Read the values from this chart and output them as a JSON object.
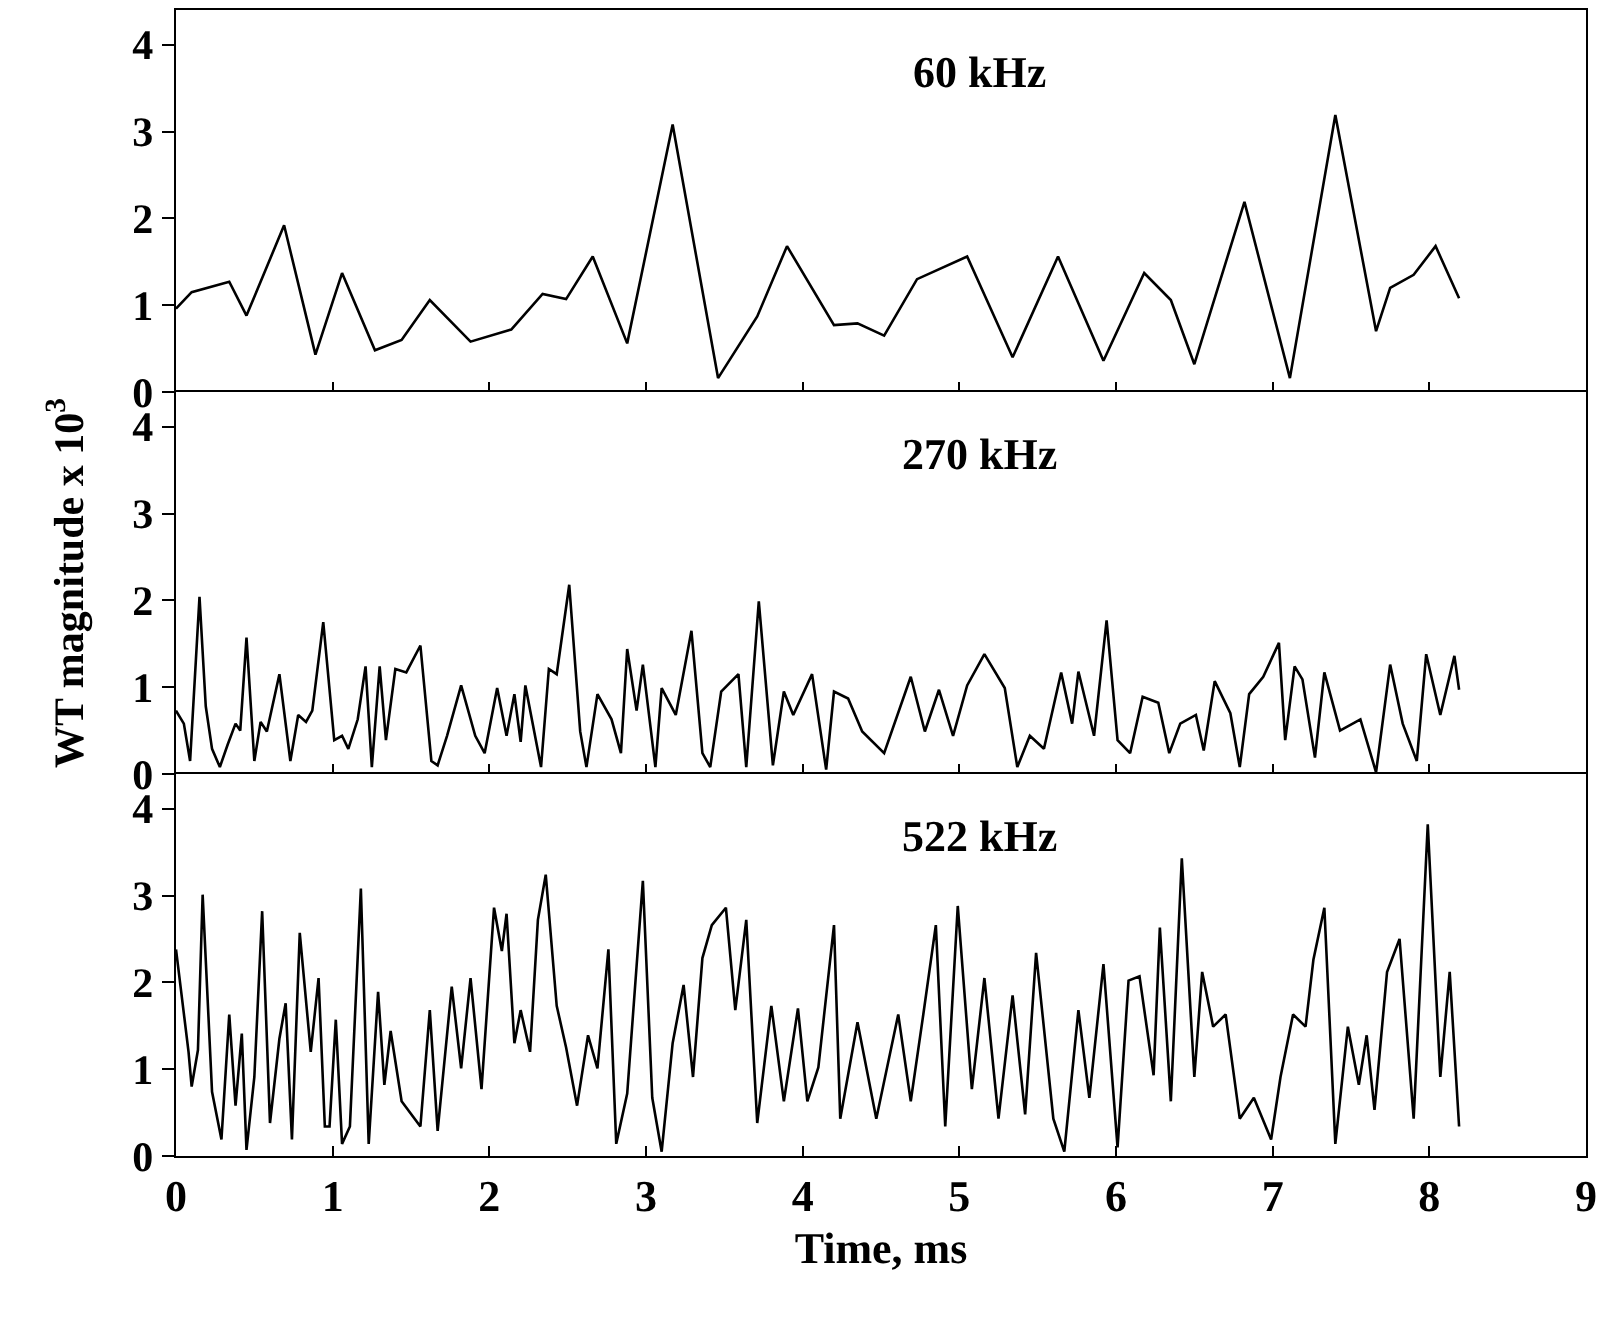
{
  "chart_data": [
    {
      "type": "line",
      "title": "60 kHz",
      "color": "#000000",
      "xlim": [
        0,
        9
      ],
      "xticks": [
        0,
        1,
        2,
        3,
        4,
        5,
        6,
        7,
        8,
        9
      ],
      "ylim": [
        0,
        4.4
      ],
      "yticks": [
        0,
        1,
        2,
        3,
        4
      ],
      "tick_labels": "y",
      "x": [
        0,
        0.1,
        0.34,
        0.45,
        0.69,
        0.89,
        1.06,
        1.27,
        1.44,
        1.62,
        1.88,
        2.14,
        2.34,
        2.49,
        2.66,
        2.88,
        3.17,
        3.46,
        3.71,
        3.9,
        4.2,
        4.35,
        4.52,
        4.73,
        5.05,
        5.34,
        5.63,
        5.92,
        6.18,
        6.35,
        6.5,
        6.82,
        7.11,
        7.4,
        7.66,
        7.75,
        7.9,
        8.04,
        8.19
      ],
      "values": [
        0.96,
        1.15,
        1.27,
        0.88,
        1.92,
        0.43,
        1.37,
        0.48,
        0.6,
        1.06,
        0.58,
        0.72,
        1.13,
        1.07,
        1.56,
        0.56,
        3.08,
        0.16,
        0.87,
        1.68,
        0.77,
        0.79,
        0.65,
        1.3,
        1.56,
        0.4,
        1.56,
        0.36,
        1.37,
        1.06,
        0.32,
        2.19,
        0.16,
        3.19,
        0.7,
        1.2,
        1.35,
        1.68,
        1.08
      ]
    },
    {
      "type": "line",
      "title": "270 kHz",
      "ylabel": "WT magnitude x 10$^{3}$",
      "color": "#000000",
      "xlim": [
        0,
        9
      ],
      "xticks": [
        0,
        1,
        2,
        3,
        4,
        5,
        6,
        7,
        8,
        9
      ],
      "ylim": [
        0,
        4.4
      ],
      "yticks": [
        0,
        1,
        2,
        3,
        4
      ],
      "tick_labels": "y",
      "x": [
        0,
        0.05,
        0.09,
        0.15,
        0.19,
        0.23,
        0.28,
        0.33,
        0.38,
        0.41,
        0.45,
        0.5,
        0.54,
        0.58,
        0.66,
        0.73,
        0.78,
        0.83,
        0.87,
        0.94,
        1.01,
        1.06,
        1.1,
        1.16,
        1.21,
        1.25,
        1.3,
        1.34,
        1.4,
        1.47,
        1.56,
        1.63,
        1.67,
        1.73,
        1.82,
        1.91,
        1.97,
        2.05,
        2.11,
        2.16,
        2.2,
        2.23,
        2.33,
        2.38,
        2.43,
        2.51,
        2.58,
        2.62,
        2.69,
        2.78,
        2.84,
        2.88,
        2.94,
        2.98,
        3.06,
        3.1,
        3.19,
        3.29,
        3.36,
        3.41,
        3.48,
        3.59,
        3.64,
        3.72,
        3.81,
        3.88,
        3.94,
        4.06,
        4.15,
        4.2,
        4.29,
        4.38,
        4.52,
        4.69,
        4.78,
        4.87,
        4.96,
        5.05,
        5.16,
        5.29,
        5.37,
        5.45,
        5.54,
        5.65,
        5.72,
        5.76,
        5.86,
        5.94,
        6.01,
        6.09,
        6.17,
        6.27,
        6.34,
        6.41,
        6.51,
        6.56,
        6.63,
        6.73,
        6.79,
        6.85,
        6.94,
        7.04,
        7.08,
        7.14,
        7.19,
        7.27,
        7.33,
        7.43,
        7.56,
        7.66,
        7.75,
        7.83,
        7.92,
        7.98,
        8.07,
        8.16,
        8.19
      ],
      "values": [
        0.73,
        0.58,
        0.15,
        2.04,
        0.78,
        0.29,
        0.08,
        0.34,
        0.58,
        0.5,
        1.57,
        0.15,
        0.6,
        0.49,
        1.15,
        0.15,
        0.68,
        0.6,
        0.73,
        1.75,
        0.39,
        0.44,
        0.29,
        0.63,
        1.24,
        0.08,
        1.24,
        0.39,
        1.21,
        1.17,
        1.48,
        0.15,
        0.1,
        0.44,
        1.02,
        0.44,
        0.24,
        0.99,
        0.44,
        0.92,
        0.37,
        1.02,
        0.08,
        1.21,
        1.15,
        2.18,
        0.49,
        0.08,
        0.92,
        0.63,
        0.24,
        1.44,
        0.73,
        1.26,
        0.08,
        0.99,
        0.68,
        1.65,
        0.24,
        0.08,
        0.95,
        1.15,
        0.08,
        1.99,
        0.1,
        0.95,
        0.68,
        1.15,
        0.05,
        0.95,
        0.87,
        0.49,
        0.24,
        1.12,
        0.49,
        0.97,
        0.44,
        1.02,
        1.38,
        0.99,
        0.08,
        0.44,
        0.29,
        1.17,
        0.58,
        1.18,
        0.44,
        1.77,
        0.39,
        0.24,
        0.89,
        0.82,
        0.24,
        0.58,
        0.68,
        0.27,
        1.07,
        0.7,
        0.08,
        0.92,
        1.12,
        1.51,
        0.39,
        1.24,
        1.09,
        0.19,
        1.17,
        0.5,
        0.63,
        0.02,
        1.26,
        0.58,
        0.15,
        1.38,
        0.68,
        1.36,
        0.97
      ]
    },
    {
      "type": "line",
      "title": "522 kHz",
      "xlabel": "Time, ms",
      "color": "#000000",
      "xlim": [
        0,
        9
      ],
      "xticks": [
        0,
        1,
        2,
        3,
        4,
        5,
        6,
        7,
        8,
        9
      ],
      "ylim": [
        0,
        4.4
      ],
      "yticks": [
        0,
        1,
        2,
        3,
        4
      ],
      "x": [
        0,
        0.08,
        0.1,
        0.14,
        0.17,
        0.23,
        0.29,
        0.34,
        0.38,
        0.42,
        0.45,
        0.5,
        0.55,
        0.6,
        0.66,
        0.7,
        0.74,
        0.79,
        0.86,
        0.91,
        0.95,
        0.98,
        1.02,
        1.06,
        1.11,
        1.18,
        1.23,
        1.29,
        1.33,
        1.37,
        1.44,
        1.56,
        1.62,
        1.67,
        1.76,
        1.82,
        1.88,
        1.95,
        2.03,
        2.08,
        2.11,
        2.16,
        2.2,
        2.26,
        2.31,
        2.36,
        2.43,
        2.49,
        2.56,
        2.63,
        2.69,
        2.76,
        2.81,
        2.88,
        2.98,
        3.04,
        3.1,
        3.17,
        3.24,
        3.3,
        3.36,
        3.42,
        3.51,
        3.57,
        3.64,
        3.71,
        3.8,
        3.88,
        3.97,
        4.03,
        4.1,
        4.2,
        4.24,
        4.35,
        4.47,
        4.61,
        4.69,
        4.77,
        4.85,
        4.91,
        4.99,
        5.08,
        5.16,
        5.25,
        5.34,
        5.42,
        5.49,
        5.6,
        5.67,
        5.76,
        5.83,
        5.92,
        6.01,
        6.08,
        6.15,
        6.24,
        6.28,
        6.35,
        6.42,
        6.5,
        6.55,
        6.62,
        6.7,
        6.79,
        6.88,
        6.99,
        7.05,
        7.13,
        7.21,
        7.26,
        7.33,
        7.4,
        7.48,
        7.55,
        7.6,
        7.65,
        7.73,
        7.81,
        7.9,
        7.99,
        8.07,
        8.13,
        8.19
      ],
      "values": [
        2.38,
        1.2,
        0.8,
        1.22,
        3.01,
        0.74,
        0.19,
        1.63,
        0.58,
        1.41,
        0.07,
        0.91,
        2.82,
        0.38,
        1.35,
        1.76,
        0.19,
        2.57,
        1.2,
        2.05,
        0.34,
        0.34,
        1.57,
        0.14,
        0.34,
        3.08,
        0.14,
        1.89,
        0.82,
        1.44,
        0.63,
        0.34,
        1.68,
        0.29,
        1.95,
        1.01,
        2.05,
        0.77,
        2.86,
        2.36,
        2.79,
        1.3,
        1.68,
        1.2,
        2.72,
        3.24,
        1.73,
        1.25,
        0.58,
        1.39,
        1.01,
        2.38,
        0.14,
        0.72,
        3.17,
        0.67,
        0.05,
        1.3,
        1.97,
        0.91,
        2.28,
        2.66,
        2.86,
        1.68,
        2.72,
        0.38,
        1.73,
        0.63,
        1.7,
        0.63,
        1.02,
        2.66,
        0.43,
        1.54,
        0.43,
        1.63,
        0.63,
        1.63,
        2.66,
        0.34,
        2.88,
        0.77,
        2.05,
        0.43,
        1.85,
        0.48,
        2.34,
        0.43,
        0.05,
        1.68,
        0.67,
        2.21,
        0.1,
        2.02,
        2.07,
        0.93,
        2.63,
        0.63,
        3.43,
        0.91,
        2.12,
        1.49,
        1.63,
        0.43,
        0.67,
        0.19,
        0.91,
        1.63,
        1.49,
        2.26,
        2.86,
        0.14,
        1.49,
        0.82,
        1.39,
        0.53,
        2.12,
        2.5,
        0.43,
        3.82,
        0.91,
        2.12,
        0.34
      ]
    }
  ]
}
